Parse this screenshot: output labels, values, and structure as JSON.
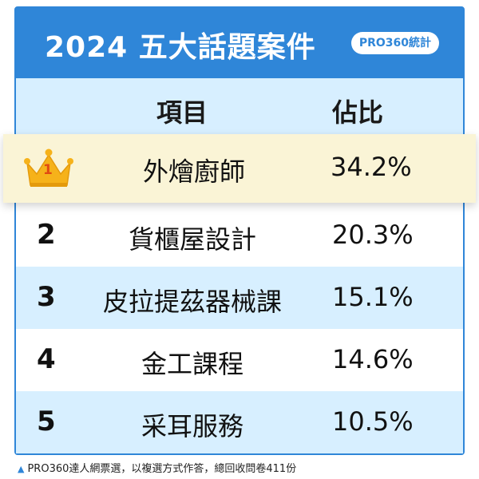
{
  "title": "2024 五大話題案件",
  "badge": "PRO360統計",
  "columns": {
    "item": "項目",
    "share": "佔比"
  },
  "rows": [
    {
      "rank": "1",
      "name": "外燴廚師",
      "share": "34.2%"
    },
    {
      "rank": "2",
      "name": "貨櫃屋設計",
      "share": "20.3%"
    },
    {
      "rank": "3",
      "name": "皮拉提茲器械課",
      "share": "15.1%"
    },
    {
      "rank": "4",
      "name": "金工課程",
      "share": "14.6%"
    },
    {
      "rank": "5",
      "name": "采耳服務",
      "share": "10.5%"
    }
  ],
  "footer": "PRO360達人網票選，以複選方式作答，總回收問卷411份",
  "colors": {
    "accent": "#2f86d8",
    "row_alt": "#d7efff",
    "highlight": "#faf4d6",
    "crown": "#f6b21a"
  },
  "icons": {
    "rank1": "crown-icon",
    "footer": "triangle-up-icon"
  }
}
